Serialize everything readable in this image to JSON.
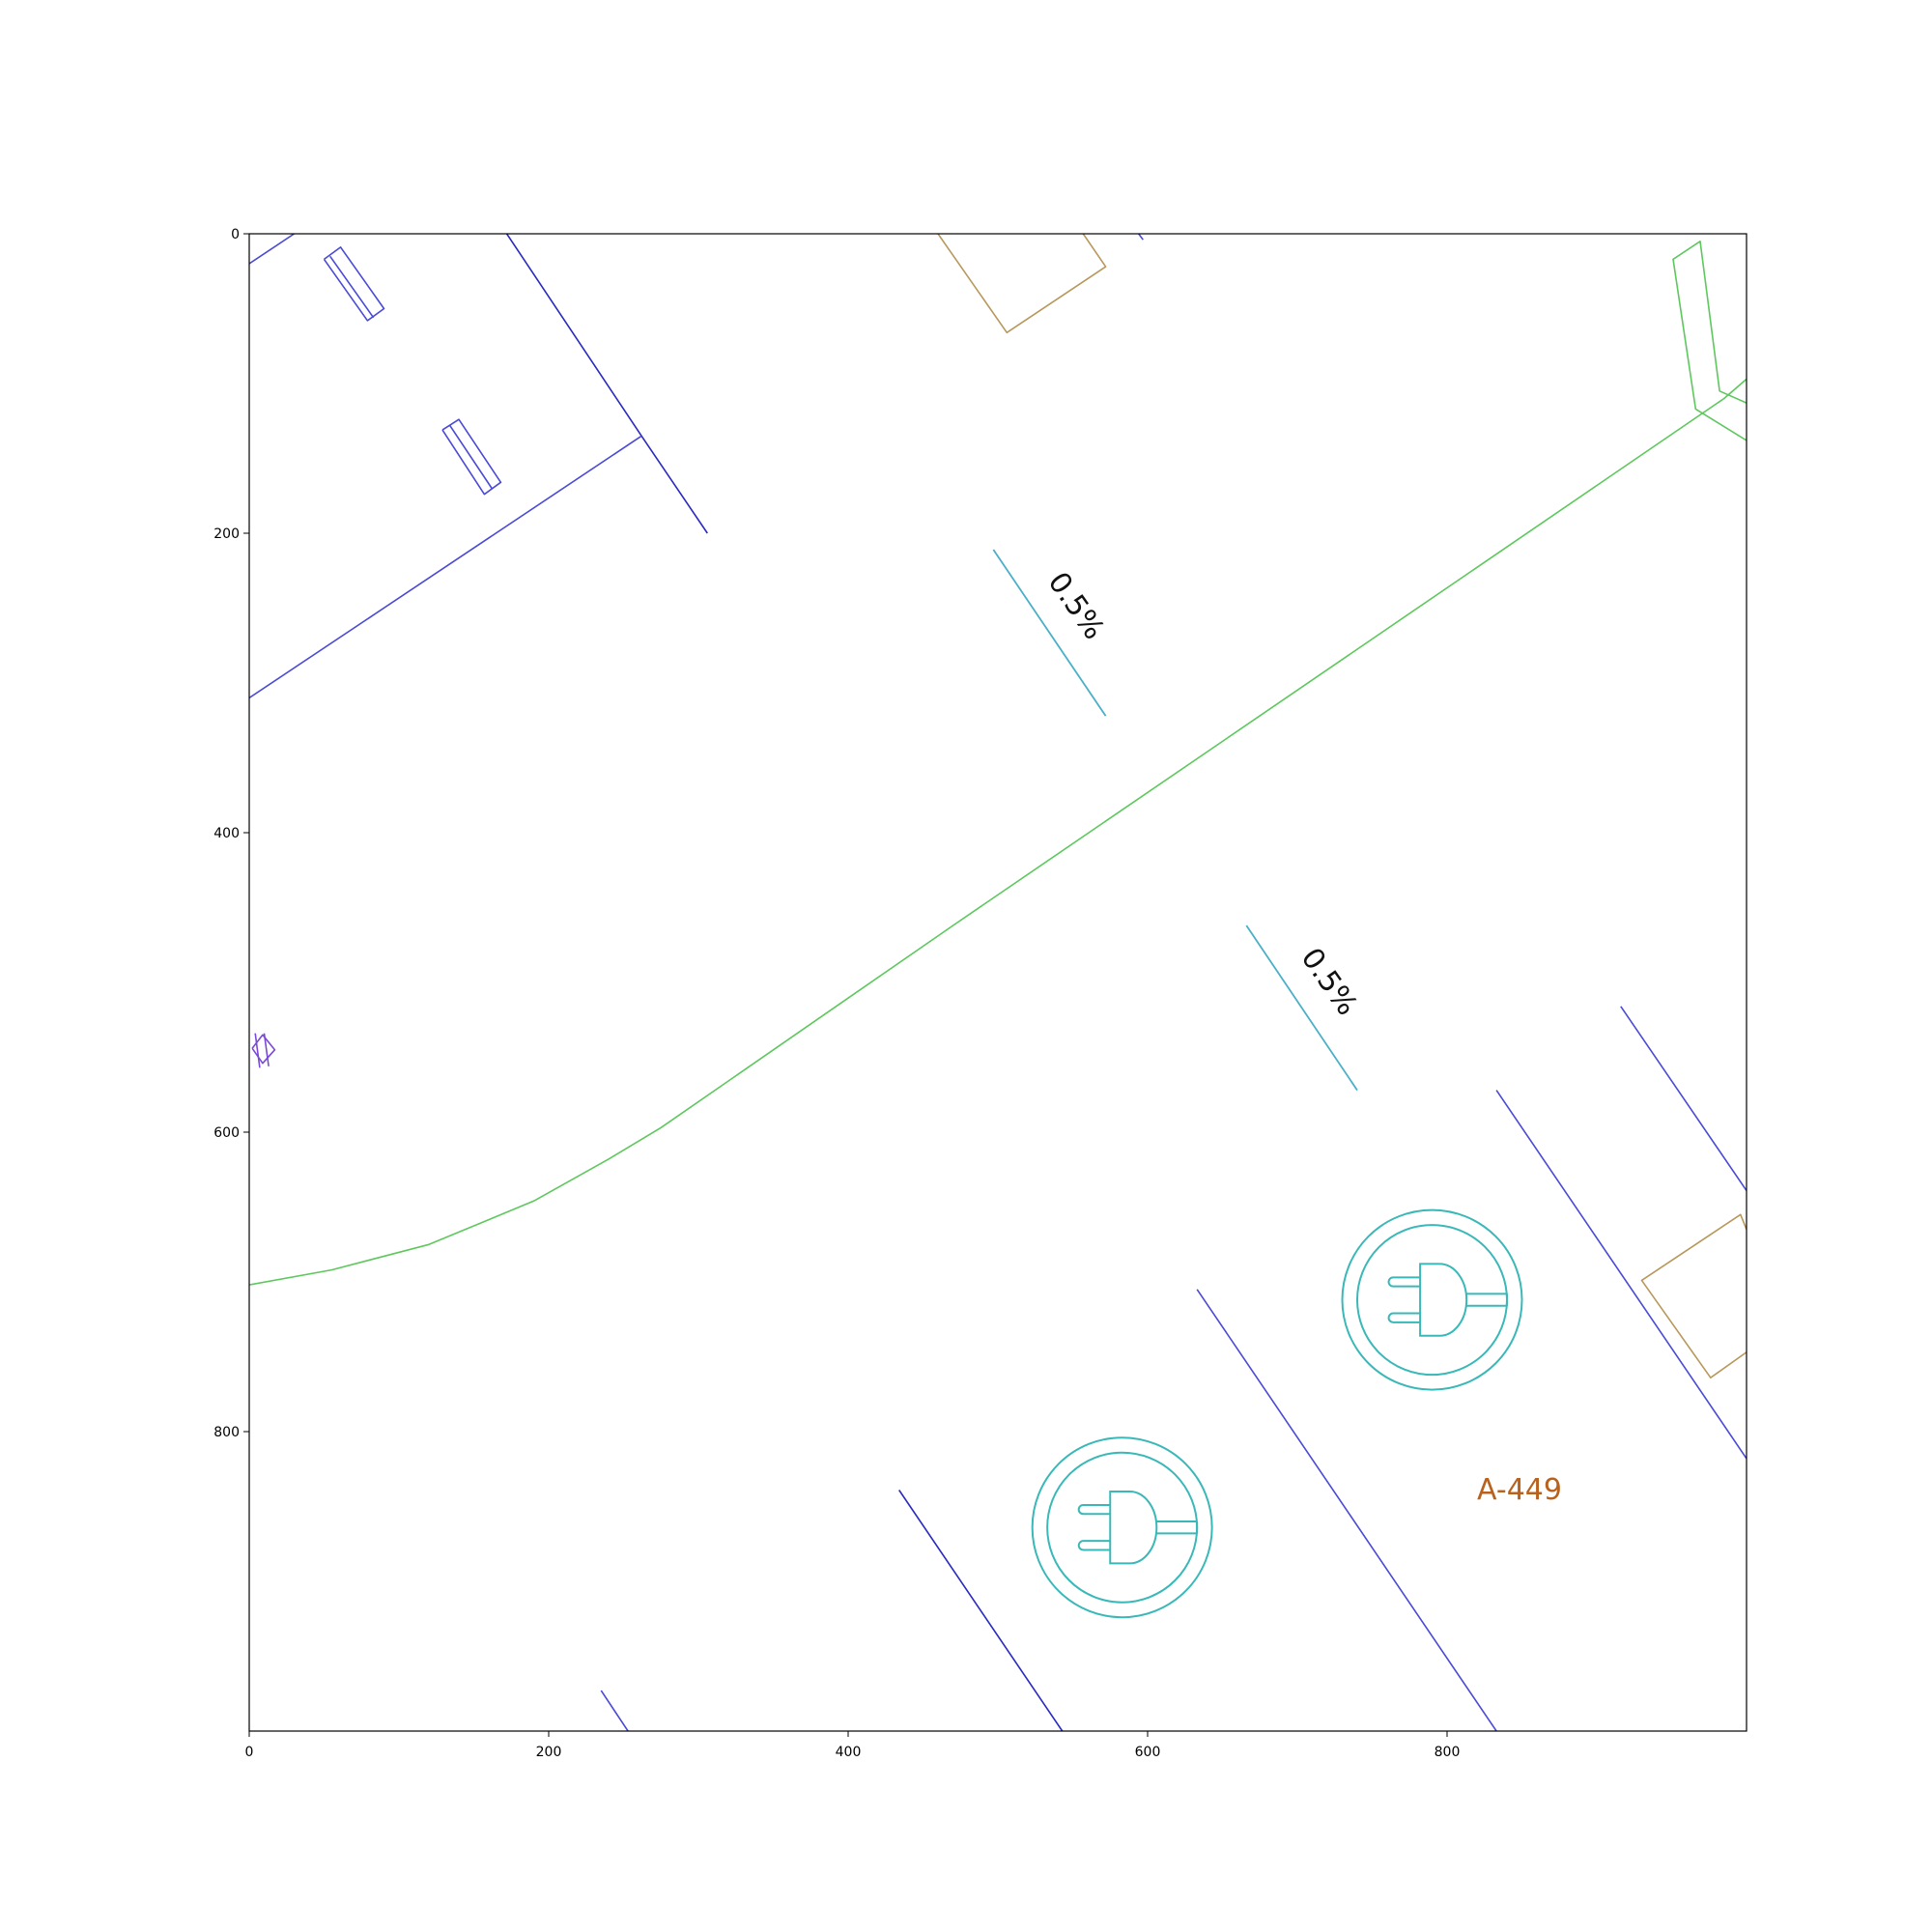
{
  "chart_data": {
    "type": "diagram",
    "xlim": [
      0,
      1000
    ],
    "ylim": [
      1000,
      0
    ],
    "x_ticks": [
      0,
      200,
      400,
      600,
      800
    ],
    "y_ticks": [
      0,
      200,
      400,
      600,
      800
    ],
    "x_tick_labels": [
      "0",
      "200",
      "400",
      "600",
      "800"
    ],
    "y_tick_labels": [
      "0",
      "200",
      "400",
      "600",
      "800"
    ],
    "annotations": [
      {
        "text": "0.5%",
        "x": 533,
        "y": 232,
        "rotation": 55,
        "leader": [
          [
            497,
            211
          ],
          [
            572,
            322
          ]
        ]
      },
      {
        "text": "0.5%",
        "x": 702,
        "y": 483,
        "rotation": 55,
        "leader": [
          [
            666,
            462
          ],
          [
            740,
            572
          ]
        ]
      },
      {
        "text": "A-449",
        "x": 820,
        "y": 845
      }
    ],
    "outlet_symbols": [
      {
        "cx": 790,
        "cy": 712,
        "r_outer": 60,
        "r_inner": 50
      },
      {
        "cx": 583,
        "cy": 864,
        "r_outer": 60,
        "r_inner": 50
      }
    ],
    "lines": [
      {
        "layer": "blue",
        "points": [
          [
            0,
            20
          ],
          [
            30,
            0
          ]
        ]
      },
      {
        "layer": "blue",
        "points": [
          [
            172,
            0
          ],
          [
            262,
            135
          ],
          [
            306,
            200
          ]
        ]
      },
      {
        "layer": "blue",
        "points": [
          [
            0,
            310
          ],
          [
            262,
            135
          ]
        ]
      },
      {
        "layer": "blue",
        "points": [
          [
            594,
            0
          ],
          [
            597,
            4
          ]
        ]
      },
      {
        "layer": "blue",
        "points": [
          [
            50,
            17
          ],
          [
            61,
            9
          ],
          [
            90,
            50
          ],
          [
            79,
            58
          ],
          [
            50,
            17
          ]
        ]
      },
      {
        "layer": "blue",
        "points": [
          [
            54,
            15
          ],
          [
            83,
            56
          ]
        ]
      },
      {
        "layer": "blue",
        "points": [
          [
            129,
            131
          ],
          [
            140,
            124
          ],
          [
            168,
            166
          ],
          [
            157,
            174
          ],
          [
            129,
            131
          ]
        ]
      },
      {
        "layer": "blue",
        "points": [
          [
            134,
            128
          ],
          [
            162,
            170
          ]
        ]
      },
      {
        "layer": "blue",
        "points": [
          [
            916,
            516
          ],
          [
            1000,
            639
          ]
        ]
      },
      {
        "layer": "blue",
        "points": [
          [
            833,
            572
          ],
          [
            1000,
            818
          ]
        ]
      },
      {
        "layer": "blue",
        "points": [
          [
            633,
            705
          ],
          [
            833,
            1000
          ]
        ]
      },
      {
        "layer": "blue",
        "points": [
          [
            434,
            839
          ],
          [
            543,
            1000
          ]
        ]
      },
      {
        "layer": "blue",
        "points": [
          [
            235,
            973
          ],
          [
            253,
            1000
          ]
        ]
      },
      {
        "layer": "tan",
        "points": [
          [
            460,
            0
          ],
          [
            506,
            66
          ],
          [
            572,
            22
          ],
          [
            557,
            0
          ]
        ]
      },
      {
        "layer": "tan",
        "points": [
          [
            1000,
            665
          ],
          [
            996,
            655
          ],
          [
            930,
            699
          ],
          [
            976,
            764
          ],
          [
            1000,
            747
          ]
        ]
      },
      {
        "layer": "green",
        "points": [
          [
            0,
            702
          ],
          [
            55,
            692
          ],
          [
            120,
            675
          ],
          [
            190,
            646
          ],
          [
            240,
            618
          ],
          [
            275,
            597
          ],
          [
            470,
            462
          ],
          [
            985,
            110
          ],
          [
            1000,
            97
          ]
        ]
      },
      {
        "layer": "green",
        "points": [
          [
            1000,
            113
          ],
          [
            982,
            105
          ],
          [
            969,
            5
          ],
          [
            951,
            17
          ],
          [
            966,
            117
          ],
          [
            1000,
            138
          ]
        ]
      },
      {
        "layer": "purple",
        "points": [
          [
            2,
            544
          ],
          [
            9,
            535
          ],
          [
            17,
            545
          ],
          [
            9,
            554
          ],
          [
            2,
            544
          ]
        ]
      },
      {
        "layer": "purple",
        "points": [
          [
            4,
            534
          ],
          [
            7,
            557
          ]
        ]
      },
      {
        "layer": "purple",
        "points": [
          [
            10,
            534
          ],
          [
            13,
            556
          ]
        ]
      }
    ]
  },
  "colors": {
    "blue": "#4a4ad6",
    "dark_blue": "#2a2ac0",
    "tan": "#b8985c",
    "green": "#5ec85e",
    "purple": "#7a4ad6",
    "cyan_leader": "#4ab0c8",
    "outlet": "#3ab8b8",
    "room_label": "#b8621e",
    "axes": "#000000"
  }
}
